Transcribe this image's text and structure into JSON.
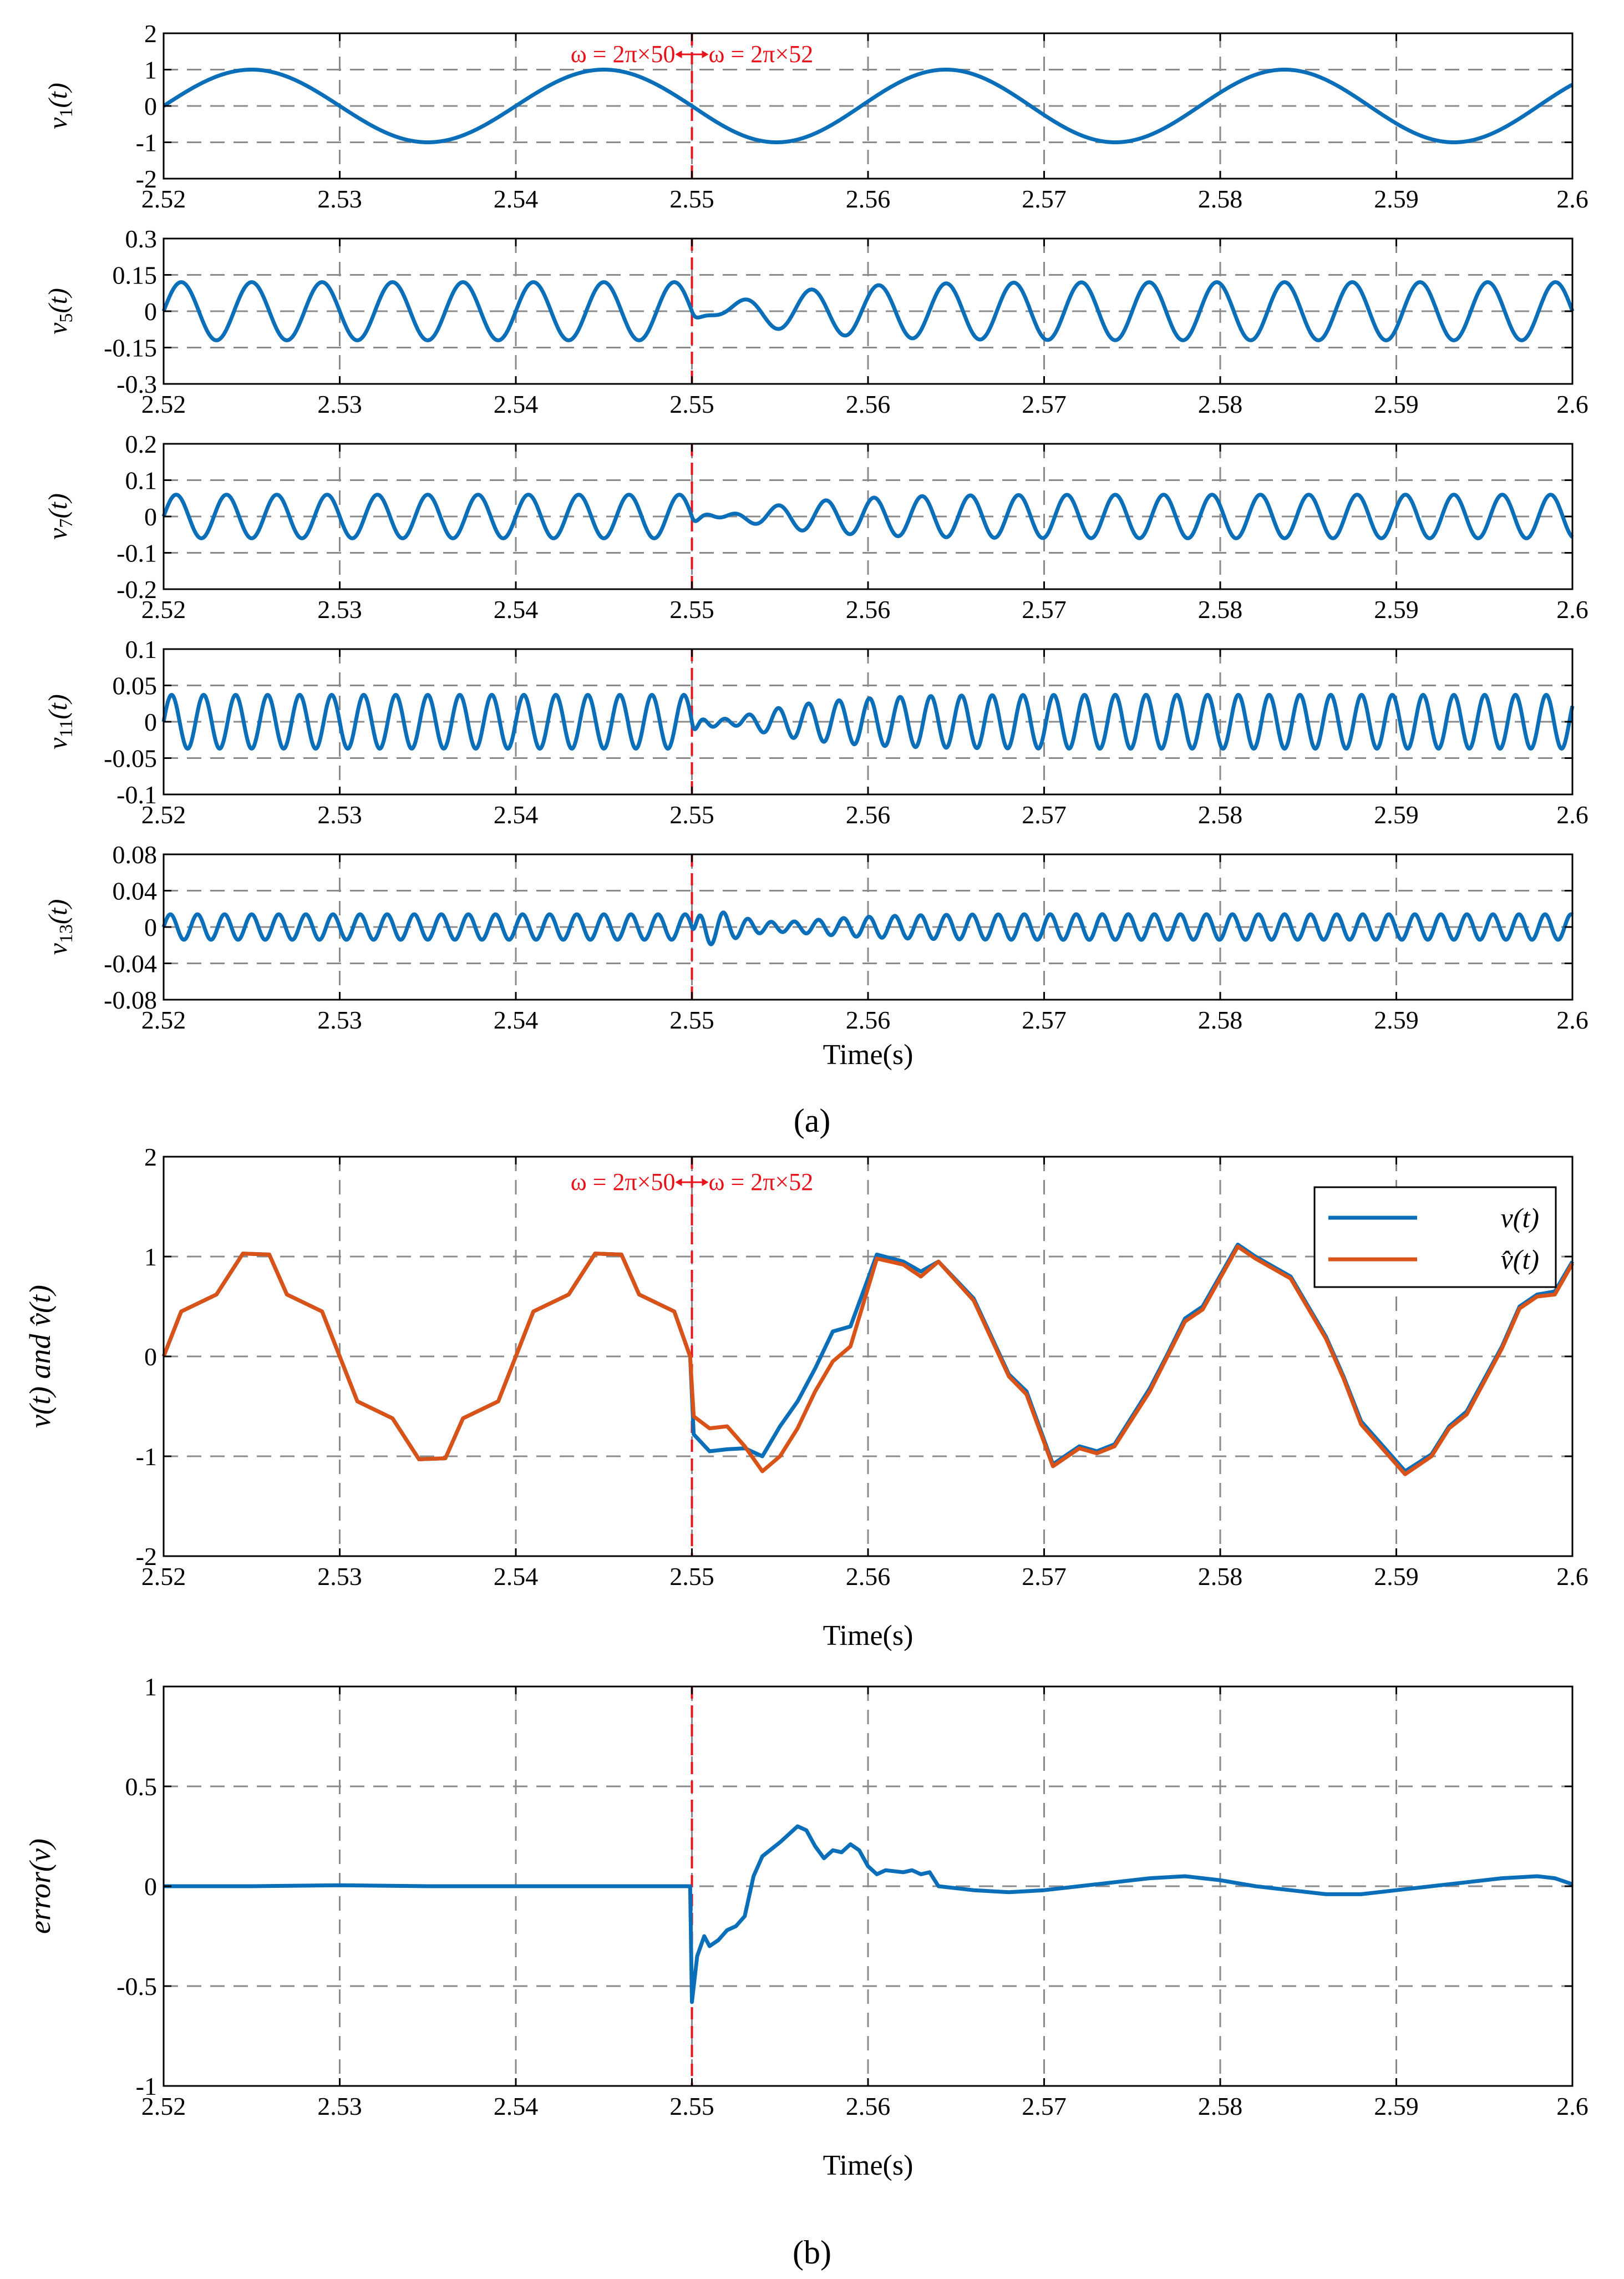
{
  "figure": {
    "caption_a": "(a)",
    "caption_b": "(b)",
    "colors": {
      "series_blue": "#0a6eb8",
      "series_orange": "#d95319",
      "annotation_red": "#e8121b",
      "grid": "#8a8a8a"
    },
    "annotation": {
      "left": "ω = 2π×50",
      "right": "ω = 2π×52"
    }
  },
  "chart_data": [
    {
      "id": "v1",
      "type": "line",
      "title": "",
      "ylabel_base": "v",
      "ylabel_sub": "1",
      "ylabel_tail": "(t)",
      "xlabel": "",
      "xlim": [
        2.52,
        2.6
      ],
      "ylim": [
        -2,
        2
      ],
      "xticks": [
        "2.52",
        "2.53",
        "2.54",
        "2.55",
        "2.56",
        "2.57",
        "2.58",
        "2.59",
        "2.6"
      ],
      "yticks": [
        "2",
        "1",
        "0",
        "-1",
        "-2"
      ],
      "ytick_values": [
        2,
        1,
        0,
        -1,
        -2
      ],
      "series": [
        {
          "name": "v1(t)",
          "color": "#0a6eb8",
          "model": {
            "before": {
              "amp": 1.0,
              "f": 50,
              "phase": 0
            },
            "after": {
              "amp": 1.0,
              "f": 52,
              "phase": 0
            },
            "switch": 2.55,
            "transient": 0.0
          }
        }
      ]
    },
    {
      "id": "v5",
      "type": "line",
      "ylabel_base": "v",
      "ylabel_sub": "5",
      "ylabel_tail": "(t)",
      "xlabel": "",
      "xlim": [
        2.52,
        2.6
      ],
      "ylim": [
        -0.3,
        0.3
      ],
      "xticks": [
        "2.52",
        "2.53",
        "2.54",
        "2.55",
        "2.56",
        "2.57",
        "2.58",
        "2.59",
        "2.6"
      ],
      "yticks": [
        "0.3",
        "0.15",
        "0",
        "-0.15",
        "-0.3"
      ],
      "ytick_values": [
        0.3,
        0.15,
        0,
        -0.15,
        -0.3
      ],
      "series": [
        {
          "name": "v5(t)",
          "color": "#0a6eb8",
          "model": {
            "before": {
              "amp": 0.12,
              "f": 250,
              "phase": 0
            },
            "after": {
              "amp": 0.12,
              "f": 260,
              "phase": 0
            },
            "switch": 2.55,
            "transient": 0.14
          }
        }
      ]
    },
    {
      "id": "v7",
      "type": "line",
      "ylabel_base": "v",
      "ylabel_sub": "7",
      "ylabel_tail": "(t)",
      "xlabel": "",
      "xlim": [
        2.52,
        2.6
      ],
      "ylim": [
        -0.2,
        0.2
      ],
      "xticks": [
        "2.52",
        "2.53",
        "2.54",
        "2.55",
        "2.56",
        "2.57",
        "2.58",
        "2.59",
        "2.6"
      ],
      "yticks": [
        "0.2",
        "0.1",
        "0",
        "-0.1",
        "-0.2"
      ],
      "ytick_values": [
        0.2,
        0.1,
        0,
        -0.1,
        -0.2
      ],
      "series": [
        {
          "name": "v7(t)",
          "color": "#0a6eb8",
          "model": {
            "before": {
              "amp": 0.06,
              "f": 350,
              "phase": 0
            },
            "after": {
              "amp": 0.06,
              "f": 364,
              "phase": 0
            },
            "switch": 2.55,
            "transient": 0.09
          }
        }
      ]
    },
    {
      "id": "v11",
      "type": "line",
      "ylabel_base": "v",
      "ylabel_sub": "11",
      "ylabel_tail": "(t)",
      "xlabel": "",
      "xlim": [
        2.52,
        2.6
      ],
      "ylim": [
        -0.1,
        0.1
      ],
      "xticks": [
        "2.52",
        "2.53",
        "2.54",
        "2.55",
        "2.56",
        "2.57",
        "2.58",
        "2.59",
        "2.6"
      ],
      "yticks": [
        "0.1",
        "0.05",
        "0",
        "-0.05",
        "-0.1"
      ],
      "ytick_values": [
        0.1,
        0.05,
        0,
        -0.05,
        -0.1
      ],
      "series": [
        {
          "name": "v11(t)",
          "color": "#0a6eb8",
          "model": {
            "before": {
              "amp": 0.037,
              "f": 550,
              "phase": 0
            },
            "after": {
              "amp": 0.037,
              "f": 572,
              "phase": 0
            },
            "switch": 2.55,
            "transient": 0.06
          }
        }
      ]
    },
    {
      "id": "v13",
      "type": "line",
      "ylabel_base": "v",
      "ylabel_sub": "13",
      "ylabel_tail": "(t)",
      "xlabel": "Time(s)",
      "xlim": [
        2.52,
        2.6
      ],
      "ylim": [
        -0.08,
        0.08
      ],
      "xticks": [
        "2.52",
        "2.53",
        "2.54",
        "2.55",
        "2.56",
        "2.57",
        "2.58",
        "2.59",
        "2.6"
      ],
      "yticks": [
        "0.08",
        "0.04",
        "0",
        "-0.04",
        "-0.08"
      ],
      "ytick_values": [
        0.08,
        0.04,
        0,
        -0.04,
        -0.08
      ],
      "series": [
        {
          "name": "v13(t)",
          "color": "#0a6eb8",
          "model": {
            "before": {
              "amp": 0.014,
              "f": 650,
              "phase": 0
            },
            "after": {
              "amp": 0.014,
              "f": 676,
              "phase": 0
            },
            "switch": 2.55,
            "transient": 0.045
          }
        }
      ]
    },
    {
      "id": "vtotal",
      "type": "line",
      "ylabel": "v(t) and v̂(t)",
      "xlabel": "Time(s)",
      "xlim": [
        2.52,
        2.6
      ],
      "ylim": [
        -2,
        2
      ],
      "xticks": [
        "2.52",
        "2.53",
        "2.54",
        "2.55",
        "2.56",
        "2.57",
        "2.58",
        "2.59",
        "2.6"
      ],
      "yticks": [
        "2",
        "1",
        "0",
        "-1",
        "-2"
      ],
      "ytick_values": [
        2,
        1,
        0,
        -1,
        -2
      ],
      "legend": [
        "v(t)",
        "v̂(t)"
      ],
      "legend_position": "top-right",
      "series": [
        {
          "name": "v(t)",
          "color": "#0a6eb8",
          "points": [
            [
              2.52,
              0.0
            ],
            [
              2.521,
              0.45
            ],
            [
              2.523,
              0.62
            ],
            [
              2.5245,
              1.03
            ],
            [
              2.526,
              1.02
            ],
            [
              2.527,
              0.62
            ],
            [
              2.529,
              0.45
            ],
            [
              2.53,
              0.0
            ],
            [
              2.531,
              -0.45
            ],
            [
              2.533,
              -0.62
            ],
            [
              2.5345,
              -1.03
            ],
            [
              2.536,
              -1.02
            ],
            [
              2.537,
              -0.62
            ],
            [
              2.539,
              -0.45
            ],
            [
              2.54,
              0.0
            ],
            [
              2.541,
              0.45
            ],
            [
              2.543,
              0.62
            ],
            [
              2.5445,
              1.03
            ],
            [
              2.546,
              1.02
            ],
            [
              2.547,
              0.62
            ],
            [
              2.549,
              0.45
            ],
            [
              2.5499,
              0.0
            ],
            [
              2.5501,
              -0.78
            ],
            [
              2.551,
              -0.95
            ],
            [
              2.552,
              -0.93
            ],
            [
              2.553,
              -0.92
            ],
            [
              2.554,
              -1.0
            ],
            [
              2.555,
              -0.7
            ],
            [
              2.556,
              -0.45
            ],
            [
              2.557,
              -0.12
            ],
            [
              2.558,
              0.25
            ],
            [
              2.559,
              0.3
            ],
            [
              2.5605,
              1.02
            ],
            [
              2.562,
              0.95
            ],
            [
              2.563,
              0.85
            ],
            [
              2.564,
              0.95
            ],
            [
              2.566,
              0.58
            ],
            [
              2.568,
              -0.18
            ],
            [
              2.569,
              -0.35
            ],
            [
              2.5705,
              -1.08
            ],
            [
              2.572,
              -0.9
            ],
            [
              2.573,
              -0.95
            ],
            [
              2.574,
              -0.88
            ],
            [
              2.576,
              -0.32
            ],
            [
              2.577,
              0.02
            ],
            [
              2.578,
              0.38
            ],
            [
              2.579,
              0.5
            ],
            [
              2.581,
              1.12
            ],
            [
              2.582,
              1.0
            ],
            [
              2.583,
              0.9
            ],
            [
              2.584,
              0.8
            ],
            [
              2.586,
              0.2
            ],
            [
              2.587,
              -0.2
            ],
            [
              2.588,
              -0.65
            ],
            [
              2.5905,
              -1.15
            ],
            [
              2.592,
              -0.98
            ],
            [
              2.593,
              -0.7
            ],
            [
              2.594,
              -0.55
            ],
            [
              2.596,
              0.1
            ],
            [
              2.597,
              0.5
            ],
            [
              2.598,
              0.62
            ],
            [
              2.599,
              0.65
            ],
            [
              2.6,
              0.95
            ]
          ]
        },
        {
          "name": "v̂(t)",
          "color": "#d95319",
          "points": [
            [
              2.52,
              0.0
            ],
            [
              2.521,
              0.45
            ],
            [
              2.523,
              0.62
            ],
            [
              2.5245,
              1.03
            ],
            [
              2.526,
              1.02
            ],
            [
              2.527,
              0.62
            ],
            [
              2.529,
              0.45
            ],
            [
              2.53,
              0.0
            ],
            [
              2.531,
              -0.45
            ],
            [
              2.533,
              -0.62
            ],
            [
              2.5345,
              -1.03
            ],
            [
              2.536,
              -1.02
            ],
            [
              2.537,
              -0.62
            ],
            [
              2.539,
              -0.45
            ],
            [
              2.54,
              0.0
            ],
            [
              2.541,
              0.45
            ],
            [
              2.543,
              0.62
            ],
            [
              2.5445,
              1.03
            ],
            [
              2.546,
              1.02
            ],
            [
              2.547,
              0.62
            ],
            [
              2.549,
              0.45
            ],
            [
              2.5499,
              0.0
            ],
            [
              2.5501,
              -0.6
            ],
            [
              2.551,
              -0.72
            ],
            [
              2.552,
              -0.7
            ],
            [
              2.553,
              -0.9
            ],
            [
              2.554,
              -1.15
            ],
            [
              2.555,
              -1.0
            ],
            [
              2.556,
              -0.72
            ],
            [
              2.557,
              -0.35
            ],
            [
              2.558,
              -0.05
            ],
            [
              2.559,
              0.1
            ],
            [
              2.5605,
              0.98
            ],
            [
              2.562,
              0.92
            ],
            [
              2.563,
              0.8
            ],
            [
              2.564,
              0.95
            ],
            [
              2.566,
              0.56
            ],
            [
              2.568,
              -0.2
            ],
            [
              2.569,
              -0.38
            ],
            [
              2.5705,
              -1.1
            ],
            [
              2.572,
              -0.92
            ],
            [
              2.573,
              -0.97
            ],
            [
              2.574,
              -0.9
            ],
            [
              2.576,
              -0.35
            ],
            [
              2.577,
              0.0
            ],
            [
              2.578,
              0.35
            ],
            [
              2.579,
              0.47
            ],
            [
              2.581,
              1.1
            ],
            [
              2.582,
              0.98
            ],
            [
              2.583,
              0.88
            ],
            [
              2.584,
              0.78
            ],
            [
              2.586,
              0.18
            ],
            [
              2.587,
              -0.22
            ],
            [
              2.588,
              -0.68
            ],
            [
              2.5905,
              -1.18
            ],
            [
              2.592,
              -1.0
            ],
            [
              2.593,
              -0.72
            ],
            [
              2.594,
              -0.58
            ],
            [
              2.596,
              0.08
            ],
            [
              2.597,
              0.48
            ],
            [
              2.598,
              0.6
            ],
            [
              2.599,
              0.62
            ],
            [
              2.6,
              0.93
            ]
          ]
        }
      ]
    },
    {
      "id": "error",
      "type": "line",
      "ylabel": "error(v)",
      "xlabel": "Time(s)",
      "xlim": [
        2.52,
        2.6
      ],
      "ylim": [
        -1,
        1
      ],
      "xticks": [
        "2.52",
        "2.53",
        "2.54",
        "2.55",
        "2.56",
        "2.57",
        "2.58",
        "2.59",
        "2.6"
      ],
      "yticks": [
        "1",
        "0.5",
        "0",
        "-0.5",
        "-1"
      ],
      "ytick_values": [
        1,
        0.5,
        0,
        -0.5,
        -1
      ],
      "series": [
        {
          "name": "error(v)",
          "color": "#0a6eb8",
          "points": [
            [
              2.52,
              0.0
            ],
            [
              2.525,
              0.0
            ],
            [
              2.53,
              0.005
            ],
            [
              2.535,
              0.0
            ],
            [
              2.54,
              0.0
            ],
            [
              2.545,
              0.0
            ],
            [
              2.5499,
              0.0
            ],
            [
              2.55,
              -0.58
            ],
            [
              2.5503,
              -0.35
            ],
            [
              2.5507,
              -0.25
            ],
            [
              2.551,
              -0.3
            ],
            [
              2.5515,
              -0.27
            ],
            [
              2.552,
              -0.22
            ],
            [
              2.5525,
              -0.2
            ],
            [
              2.553,
              -0.15
            ],
            [
              2.5535,
              0.05
            ],
            [
              2.554,
              0.15
            ],
            [
              2.555,
              0.22
            ],
            [
              2.5555,
              0.26
            ],
            [
              2.556,
              0.3
            ],
            [
              2.5565,
              0.28
            ],
            [
              2.557,
              0.2
            ],
            [
              2.5575,
              0.14
            ],
            [
              2.558,
              0.18
            ],
            [
              2.5585,
              0.17
            ],
            [
              2.559,
              0.21
            ],
            [
              2.5595,
              0.18
            ],
            [
              2.56,
              0.1
            ],
            [
              2.5605,
              0.06
            ],
            [
              2.561,
              0.08
            ],
            [
              2.562,
              0.07
            ],
            [
              2.5625,
              0.08
            ],
            [
              2.563,
              0.06
            ],
            [
              2.5635,
              0.07
            ],
            [
              2.564,
              0.0
            ],
            [
              2.566,
              -0.02
            ],
            [
              2.568,
              -0.03
            ],
            [
              2.57,
              -0.02
            ],
            [
              2.572,
              0.0
            ],
            [
              2.574,
              0.02
            ],
            [
              2.576,
              0.04
            ],
            [
              2.578,
              0.05
            ],
            [
              2.58,
              0.03
            ],
            [
              2.582,
              0.0
            ],
            [
              2.584,
              -0.02
            ],
            [
              2.586,
              -0.04
            ],
            [
              2.588,
              -0.04
            ],
            [
              2.59,
              -0.02
            ],
            [
              2.592,
              0.0
            ],
            [
              2.594,
              0.02
            ],
            [
              2.596,
              0.04
            ],
            [
              2.598,
              0.05
            ],
            [
              2.599,
              0.04
            ],
            [
              2.6,
              0.01
            ]
          ]
        }
      ]
    }
  ]
}
